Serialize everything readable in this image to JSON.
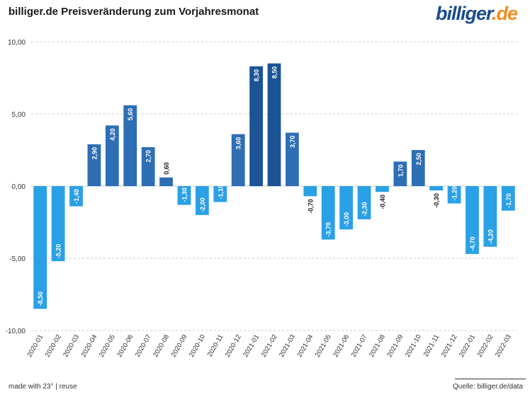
{
  "title": "billiger.de Preisveränderung zum Vorjahresmonat",
  "logo": {
    "part1": "billiger",
    "part2": ".de"
  },
  "footer": {
    "left": "made with 23° | reuse",
    "right": "Quelle: billiger.de/data"
  },
  "colors": {
    "positive": "#2e6eb5",
    "positive_dark": "#1b5495",
    "negative": "#2aa0e6",
    "grid": "#cccccc"
  },
  "chart_data": {
    "type": "bar",
    "categories": [
      "2020-01",
      "2020-02",
      "2020-03",
      "2020-04",
      "2020-05",
      "2020-06",
      "2020-07",
      "2020-08",
      "2020-09",
      "2020-10",
      "2020-11",
      "2020-12",
      "2021-01",
      "2021-02",
      "2021-03",
      "2021-04",
      "2021-05",
      "2021-06",
      "2021-07",
      "2021-08",
      "2021-09",
      "2021-10",
      "2021-11",
      "2021-12",
      "2022-01",
      "2022-02",
      "2022-03"
    ],
    "values": [
      -8.5,
      -5.2,
      -1.4,
      2.9,
      4.2,
      5.6,
      2.7,
      0.6,
      -1.3,
      -2.0,
      -1.1,
      3.6,
      8.3,
      8.5,
      3.7,
      -0.7,
      -3.7,
      -3.0,
      -2.3,
      -0.4,
      1.7,
      2.5,
      -0.3,
      -1.2,
      -4.7,
      -4.2,
      -1.7
    ],
    "data_labels": [
      "-8,50",
      "-5,20",
      "-1,40",
      "2,90",
      "4,20",
      "5,60",
      "2,70",
      "0,60",
      "-1,30",
      "-2,00",
      "-1,10",
      "3,60",
      "8,30",
      "8,50",
      "3,70",
      "-0,70",
      "-3,70",
      "-3,00",
      "-2,30",
      "-0,40",
      "1,70",
      "2,50",
      "-0,30",
      "-1,20",
      "-4,70",
      "-4,20",
      "-1,70"
    ],
    "yticks": [
      10,
      5,
      0,
      -5,
      -10
    ],
    "ytick_labels": [
      "10,00",
      "5,00",
      "0,00",
      "-5,00",
      "-10,00"
    ],
    "ylim": [
      -10,
      10
    ],
    "grid": true,
    "xlabel": "",
    "ylabel": ""
  }
}
